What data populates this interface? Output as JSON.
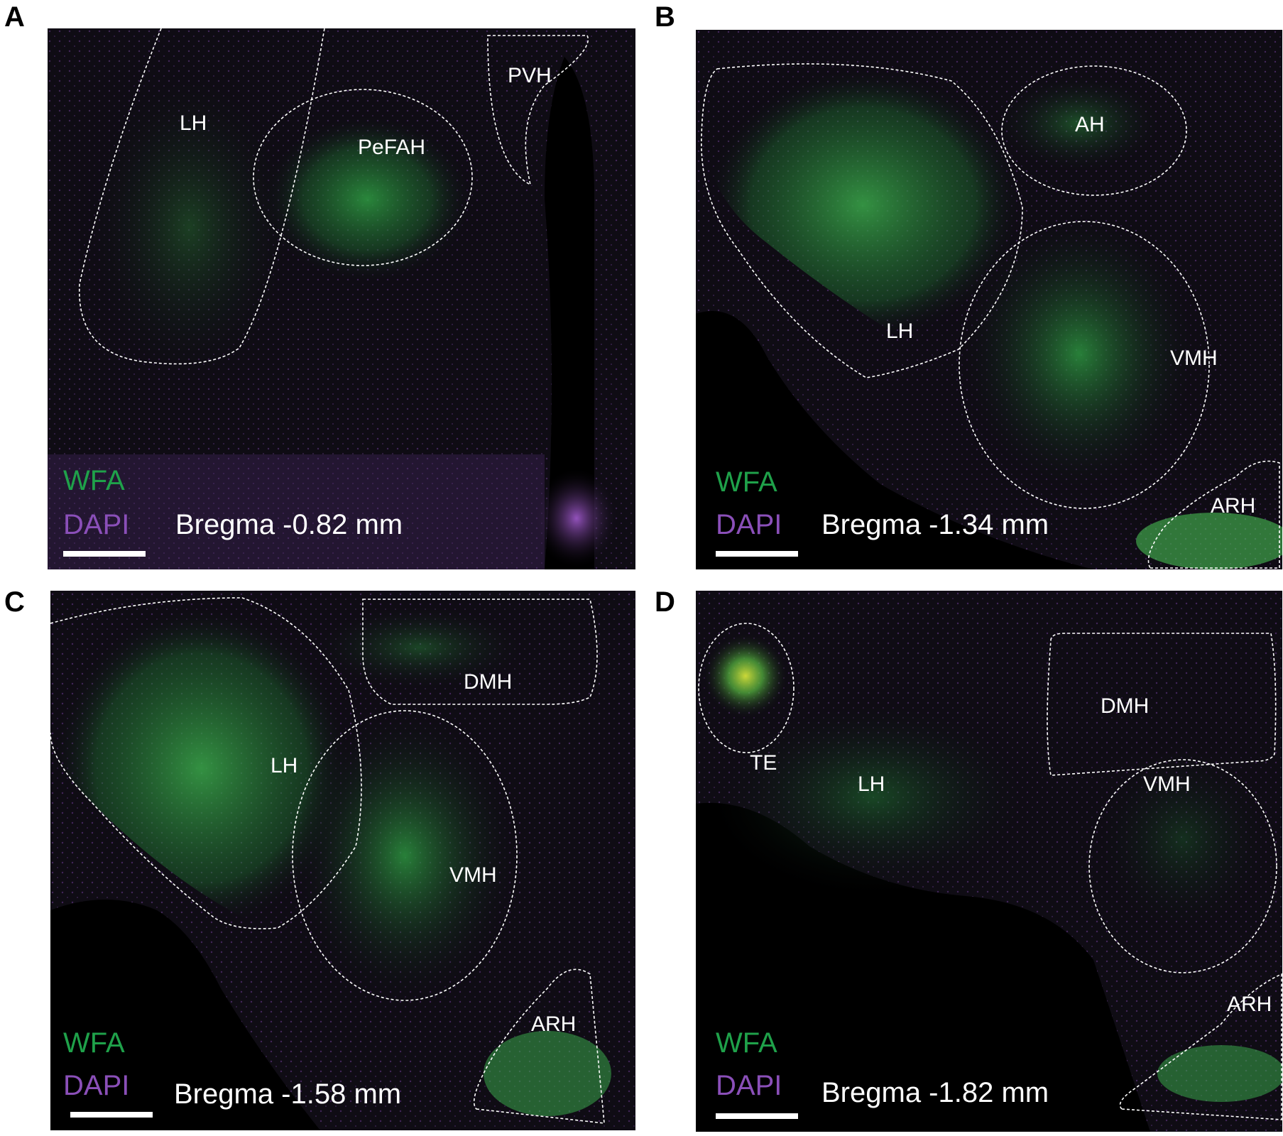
{
  "figure": {
    "panels": [
      {
        "letter": "A",
        "regions": [
          "LH",
          "PeFAH",
          "PVH"
        ],
        "stain_wfa": "WFA",
        "stain_dapi": "DAPI",
        "bregma": "Bregma -0.82 mm"
      },
      {
        "letter": "B",
        "regions": [
          "AH",
          "LH",
          "VMH",
          "ARH"
        ],
        "stain_wfa": "WFA",
        "stain_dapi": "DAPI",
        "bregma": "Bregma -1.34 mm"
      },
      {
        "letter": "C",
        "regions": [
          "DMH",
          "LH",
          "VMH",
          "ARH"
        ],
        "stain_wfa": "WFA",
        "stain_dapi": "DAPI",
        "bregma": "Bregma -1.58 mm"
      },
      {
        "letter": "D",
        "regions": [
          "DMH",
          "TE",
          "LH",
          "VMH",
          "ARH"
        ],
        "stain_wfa": "WFA",
        "stain_dapi": "DAPI",
        "bregma": "Bregma -1.82 mm"
      }
    ]
  },
  "colors": {
    "wfa": "#1fa14a",
    "dapi": "#8a4fb8",
    "background": "#0b0910",
    "outline": "#ffffff"
  }
}
